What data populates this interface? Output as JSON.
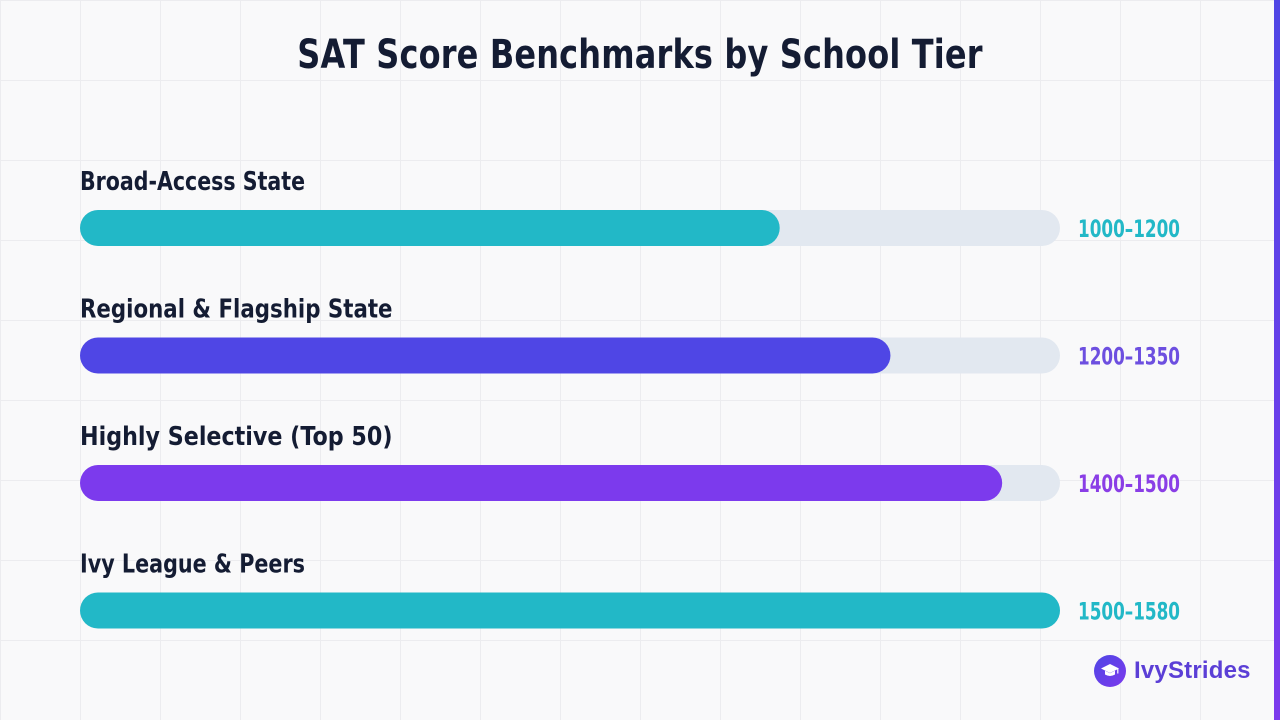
{
  "title": "SAT Score Benchmarks by School Tier",
  "brand": {
    "name": "IvyStrides",
    "icon": "graduation-cap-icon"
  },
  "colors": {
    "teal": "#22b8c7",
    "indigo": "#4f46e5",
    "violet": "#7c3aed",
    "track": "#e2e8f0",
    "text": "#141c33"
  },
  "chart_data": {
    "type": "bar",
    "orientation": "horizontal",
    "categories": [
      "Broad-Access State",
      "Regional & Flagship State",
      "Highly Selective (Top 50)",
      "Ivy League & Peers"
    ],
    "value_labels": [
      "1000–1200",
      "1200–1350",
      "1400–1500",
      "1500–1580"
    ],
    "values": [
      0.714,
      0.827,
      0.941,
      1.0
    ],
    "bar_colors": [
      "#22b8c7",
      "#4f46e5",
      "#7c3aed",
      "#22b8c7"
    ],
    "value_label_colors": [
      "#22b8c7",
      "#6d4fe0",
      "#8a3ee6",
      "#22b8c7"
    ],
    "xlim": [
      0,
      1
    ],
    "grid": false
  }
}
